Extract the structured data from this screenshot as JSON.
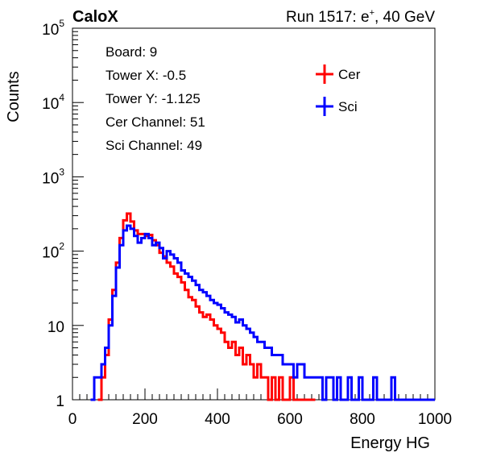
{
  "header": {
    "left_title": "CaloX",
    "right_title_prefix": "Run 1517: e",
    "right_title_sup": "+",
    "right_title_suffix": ", 40 GeV"
  },
  "info": [
    "Board: 9",
    "Tower X: -0.5",
    "Tower Y: -1.125",
    "Cer Channel: 51",
    "Sci Channel: 49"
  ],
  "chart_data": {
    "type": "line",
    "xlabel": "Energy HG",
    "ylabel": "Counts",
    "xlim": [
      0,
      1000
    ],
    "ylim": [
      1,
      100000
    ],
    "yscale": "log",
    "grid": false,
    "legend_position": "top-right",
    "x_ticks": [
      {
        "value": 0,
        "label": "0"
      },
      {
        "value": 200,
        "label": "200"
      },
      {
        "value": 400,
        "label": "400"
      },
      {
        "value": 600,
        "label": "600"
      },
      {
        "value": 800,
        "label": "800"
      },
      {
        "value": 1000,
        "label": "1000"
      }
    ],
    "y_ticks": [
      {
        "value": 1,
        "base": "1",
        "exp": ""
      },
      {
        "value": 10,
        "base": "10",
        "exp": ""
      },
      {
        "value": 100,
        "base": "10",
        "exp": "2"
      },
      {
        "value": 1000,
        "base": "10",
        "exp": "3"
      },
      {
        "value": 10000,
        "base": "10",
        "exp": "4"
      },
      {
        "value": 100000,
        "base": "10",
        "exp": "5"
      }
    ],
    "bin_width": 10,
    "series": [
      {
        "name": "Cer",
        "color": "#ff0000",
        "x": [
          70,
          80,
          90,
          100,
          110,
          120,
          130,
          140,
          150,
          160,
          170,
          180,
          190,
          200,
          210,
          220,
          230,
          240,
          250,
          260,
          270,
          280,
          290,
          300,
          310,
          320,
          330,
          340,
          350,
          360,
          370,
          380,
          390,
          400,
          410,
          420,
          430,
          440,
          450,
          460,
          470,
          480,
          490,
          500,
          510,
          520,
          530,
          540,
          550,
          560,
          570,
          580,
          590,
          600,
          610,
          620,
          630,
          640,
          650,
          660
        ],
        "values": [
          1,
          2,
          4,
          12,
          30,
          70,
          150,
          260,
          320,
          250,
          190,
          170,
          170,
          160,
          165,
          140,
          120,
          95,
          85,
          70,
          62,
          50,
          45,
          38,
          30,
          24,
          22,
          18,
          15,
          13,
          14,
          12,
          10,
          9,
          8,
          6,
          5,
          6,
          4,
          5,
          3,
          4,
          3,
          2,
          3,
          2,
          2,
          1,
          2,
          1,
          2,
          1,
          1,
          2,
          1,
          1,
          1,
          1,
          1,
          1
        ]
      },
      {
        "name": "Sci",
        "color": "#0000ff",
        "x": [
          50,
          60,
          70,
          80,
          90,
          100,
          110,
          120,
          130,
          140,
          150,
          160,
          170,
          180,
          190,
          200,
          210,
          220,
          230,
          240,
          250,
          260,
          270,
          280,
          290,
          300,
          310,
          320,
          330,
          340,
          350,
          360,
          370,
          380,
          390,
          400,
          410,
          420,
          430,
          440,
          450,
          460,
          470,
          480,
          490,
          500,
          510,
          520,
          530,
          540,
          550,
          560,
          570,
          580,
          590,
          600,
          610,
          620,
          630,
          640,
          650,
          660,
          670,
          680,
          690,
          700,
          710,
          720,
          730,
          740,
          750,
          760,
          770,
          780,
          790,
          800,
          810,
          820,
          830,
          840,
          850,
          860,
          870,
          880,
          890,
          900,
          910,
          920,
          930,
          940,
          950,
          960,
          970,
          980,
          990
        ],
        "values": [
          1,
          2,
          2,
          3,
          5,
          10,
          25,
          60,
          120,
          190,
          220,
          200,
          160,
          130,
          150,
          170,
          150,
          120,
          130,
          110,
          80,
          100,
          90,
          80,
          70,
          55,
          50,
          45,
          40,
          35,
          30,
          28,
          25,
          22,
          20,
          19,
          17,
          15,
          14,
          13,
          11,
          12,
          10,
          9,
          8,
          7,
          6,
          6,
          5,
          5,
          4,
          4,
          4,
          3,
          3,
          3,
          2,
          3,
          3,
          2,
          2,
          2,
          2,
          2,
          1,
          2,
          2,
          1,
          2,
          1,
          1,
          2,
          1,
          1,
          2,
          1,
          1,
          1,
          2,
          1,
          1,
          1,
          1,
          2,
          1,
          1,
          1,
          1,
          1,
          1,
          1,
          1,
          1,
          1,
          1
        ]
      }
    ]
  }
}
